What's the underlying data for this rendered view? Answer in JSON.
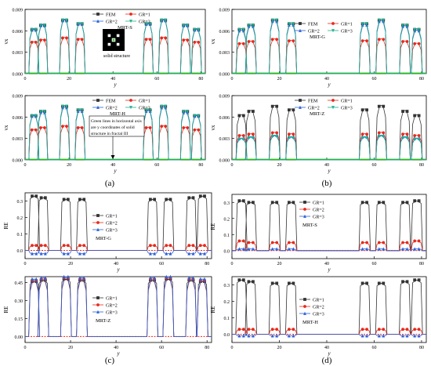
{
  "figure": {
    "panel_labels": [
      "(a)",
      "(b)",
      "(c)",
      "(d)"
    ],
    "inset_caption": "solid structure",
    "note_lines": [
      "Green lines in horizontal axis",
      "are y coordinates of solid",
      "structure in fractal III"
    ]
  },
  "chart_data": [
    {
      "type": "line",
      "ylabel": "v_x",
      "xlabel": "y",
      "method": "MRT-S",
      "xlim": [
        0,
        82
      ],
      "ylim": [
        0,
        0.009
      ],
      "xticks": [
        "0",
        "20",
        "40",
        "60",
        "80"
      ],
      "yticks": [
        "0.000",
        "0.003",
        "0.006",
        "0.009"
      ],
      "series": [
        {
          "name": "FEM",
          "color": "#333333",
          "peaks": [
            0.0062,
            0.0068,
            0.0075,
            0.007,
            0.007,
            0.0075,
            0.0068,
            0.0062
          ]
        },
        {
          "name": "GR=1",
          "color": "#e8291c",
          "peaks": [
            0.0044,
            0.0047,
            0.005,
            0.0048,
            0.0048,
            0.005,
            0.0047,
            0.0044
          ]
        },
        {
          "name": "GR=2",
          "color": "#2a60d8",
          "peaks": [
            0.0061,
            0.0067,
            0.0074,
            0.0069,
            0.0069,
            0.0074,
            0.0067,
            0.0061
          ]
        },
        {
          "name": "GR=3",
          "color": "#22b08e",
          "peaks": [
            0.0062,
            0.0068,
            0.0075,
            0.007,
            0.007,
            0.0075,
            0.0068,
            0.0062
          ]
        }
      ]
    },
    {
      "type": "line",
      "ylabel": "v_x",
      "xlabel": "y",
      "method": "MRT-G",
      "xlim": [
        0,
        82
      ],
      "ylim": [
        0,
        0.009
      ],
      "xticks": [
        "0",
        "20",
        "40",
        "60",
        "80"
      ],
      "yticks": [
        "0.000",
        "0.003",
        "0.006",
        "0.009"
      ],
      "series": [
        {
          "name": "FEM",
          "color": "#333333",
          "peaks": [
            0.0062,
            0.0068,
            0.0075,
            0.007,
            0.007,
            0.0075,
            0.0068,
            0.0062
          ]
        },
        {
          "name": "GR=1",
          "color": "#e8291c",
          "peaks": [
            0.0042,
            0.0045,
            0.0048,
            0.0046,
            0.0046,
            0.0048,
            0.0045,
            0.0042
          ]
        },
        {
          "name": "GR=2",
          "color": "#2a60d8",
          "peaks": [
            0.006,
            0.0066,
            0.0073,
            0.0068,
            0.0068,
            0.0073,
            0.0066,
            0.006
          ]
        },
        {
          "name": "GR=3",
          "color": "#22b08e",
          "peaks": [
            0.0062,
            0.0068,
            0.0075,
            0.007,
            0.007,
            0.0075,
            0.0068,
            0.0062
          ]
        }
      ]
    },
    {
      "type": "line",
      "ylabel": "v_x",
      "xlabel": "y",
      "method": "MRT-H",
      "xlim": [
        0,
        82
      ],
      "ylim": [
        0,
        0.009
      ],
      "xticks": [
        "0",
        "20",
        "40",
        "60",
        "80"
      ],
      "yticks": [
        "0.000",
        "0.003",
        "0.006",
        "0.009"
      ],
      "series": [
        {
          "name": "FEM",
          "color": "#333333",
          "peaks": [
            0.0062,
            0.0068,
            0.0075,
            0.007,
            0.007,
            0.0075,
            0.0068,
            0.0062
          ]
        },
        {
          "name": "GR=1",
          "color": "#e8291c",
          "peaks": [
            0.0042,
            0.0045,
            0.0047,
            0.0045,
            0.0045,
            0.0047,
            0.0045,
            0.0042
          ]
        },
        {
          "name": "GR=2",
          "color": "#2a60d8",
          "peaks": [
            0.0061,
            0.0066,
            0.0073,
            0.0068,
            0.0068,
            0.0073,
            0.0066,
            0.0061
          ]
        },
        {
          "name": "GR=3",
          "color": "#22b08e",
          "peaks": [
            0.0062,
            0.0068,
            0.0075,
            0.007,
            0.007,
            0.0075,
            0.0068,
            0.0062
          ]
        }
      ]
    },
    {
      "type": "line",
      "ylabel": "v_x",
      "xlabel": "y",
      "method": "MRT-Z",
      "xlim": [
        0,
        82
      ],
      "ylim": [
        0,
        0.009
      ],
      "xticks": [
        "0",
        "20",
        "40",
        "60",
        "80"
      ],
      "yticks": [
        "0.000",
        "0.003",
        "0.006",
        "0.009"
      ],
      "series": [
        {
          "name": "FEM",
          "color": "#333333",
          "peaks": [
            0.0062,
            0.0068,
            0.0075,
            0.007,
            0.007,
            0.0075,
            0.0068,
            0.0062
          ]
        },
        {
          "name": "GR=1",
          "color": "#e8291c",
          "peaks": [
            0.0034,
            0.0036,
            0.0038,
            0.0036,
            0.0036,
            0.0038,
            0.0036,
            0.0034
          ]
        },
        {
          "name": "GR=2",
          "color": "#2a60d8",
          "peaks": [
            0.003,
            0.0032,
            0.0034,
            0.0032,
            0.0032,
            0.0034,
            0.0032,
            0.003
          ]
        },
        {
          "name": "GR=3",
          "color": "#22b08e",
          "peaks": [
            0.0029,
            0.0031,
            0.0033,
            0.0031,
            0.0031,
            0.0033,
            0.0031,
            0.0029
          ]
        }
      ]
    },
    {
      "type": "line",
      "ylabel": "RE",
      "xlabel": "y",
      "method": "MRT-G",
      "xlim": [
        0,
        82
      ],
      "ylim": [
        -0.05,
        0.35
      ],
      "xticks": [
        "0",
        "20",
        "40",
        "60",
        "80"
      ],
      "yticks": [
        "0.0",
        "0.1",
        "0.2",
        "0.3"
      ],
      "series": [
        {
          "name": "GR=1",
          "color": "#333333",
          "peaks": [
            0.33,
            0.32,
            0.31,
            0.31,
            0.31,
            0.31,
            0.32,
            0.33
          ]
        },
        {
          "name": "GR=2",
          "color": "#e8291c",
          "peaks": [
            0.03,
            0.03,
            0.03,
            0.03,
            0.03,
            0.03,
            0.03,
            0.03
          ]
        },
        {
          "name": "GR=3",
          "color": "#2a60d8",
          "peaks": [
            -0.02,
            -0.02,
            -0.02,
            -0.02,
            -0.02,
            -0.02,
            -0.02,
            -0.02
          ]
        }
      ]
    },
    {
      "type": "line",
      "ylabel": "RE",
      "xlabel": "y",
      "method": "MRT-S",
      "xlim": [
        0,
        82
      ],
      "ylim": [
        -0.05,
        0.35
      ],
      "xticks": [
        "0",
        "20",
        "40",
        "60",
        "80"
      ],
      "yticks": [
        "0.0",
        "0.1",
        "0.2",
        "0.3"
      ],
      "series": [
        {
          "name": "GR=1",
          "color": "#333333",
          "peaks": [
            0.31,
            0.3,
            0.3,
            0.3,
            0.3,
            0.3,
            0.3,
            0.31
          ]
        },
        {
          "name": "GR=2",
          "color": "#e8291c",
          "peaks": [
            0.06,
            0.05,
            0.05,
            0.05,
            0.05,
            0.05,
            0.05,
            0.06
          ]
        },
        {
          "name": "GR=3",
          "color": "#2a60d8",
          "peaks": [
            0.01,
            0.01,
            0.01,
            0.01,
            0.01,
            0.01,
            0.01,
            0.01
          ]
        }
      ]
    },
    {
      "type": "line",
      "ylabel": "RE",
      "xlabel": "y",
      "method": "MRT-Z",
      "xlim": [
        0,
        82
      ],
      "ylim": [
        -0.05,
        0.5
      ],
      "xticks": [
        "0",
        "20",
        "40",
        "60",
        "80"
      ],
      "yticks": [
        "0.00",
        "0.15",
        "0.30",
        "0.45"
      ],
      "series": [
        {
          "name": "GR=1",
          "color": "#333333",
          "peaks": [
            0.46,
            0.47,
            0.48,
            0.47,
            0.47,
            0.48,
            0.47,
            0.46
          ]
        },
        {
          "name": "GR=2",
          "color": "#e8291c",
          "peaks": [
            0.47,
            0.48,
            0.49,
            0.48,
            0.48,
            0.49,
            0.48,
            0.47
          ]
        },
        {
          "name": "GR=3",
          "color": "#2a60d8",
          "peaks": [
            0.48,
            0.49,
            0.5,
            0.49,
            0.49,
            0.5,
            0.49,
            0.48
          ]
        }
      ]
    },
    {
      "type": "line",
      "ylabel": "RE",
      "xlabel": "y",
      "method": "MRT-H",
      "xlim": [
        0,
        82
      ],
      "ylim": [
        -0.05,
        0.35
      ],
      "xticks": [
        "0",
        "20",
        "40",
        "60",
        "80"
      ],
      "yticks": [
        "0.0",
        "0.1",
        "0.2",
        "0.3"
      ],
      "series": [
        {
          "name": "GR=1",
          "color": "#333333",
          "peaks": [
            0.33,
            0.32,
            0.31,
            0.31,
            0.31,
            0.31,
            0.32,
            0.33
          ]
        },
        {
          "name": "GR=2",
          "color": "#e8291c",
          "peaks": [
            0.03,
            0.03,
            0.03,
            0.03,
            0.03,
            0.03,
            0.03,
            0.03
          ]
        },
        {
          "name": "GR=3",
          "color": "#2a60d8",
          "peaks": [
            -0.01,
            -0.01,
            -0.01,
            -0.01,
            -0.01,
            -0.01,
            -0.01,
            -0.01
          ]
        }
      ]
    }
  ]
}
